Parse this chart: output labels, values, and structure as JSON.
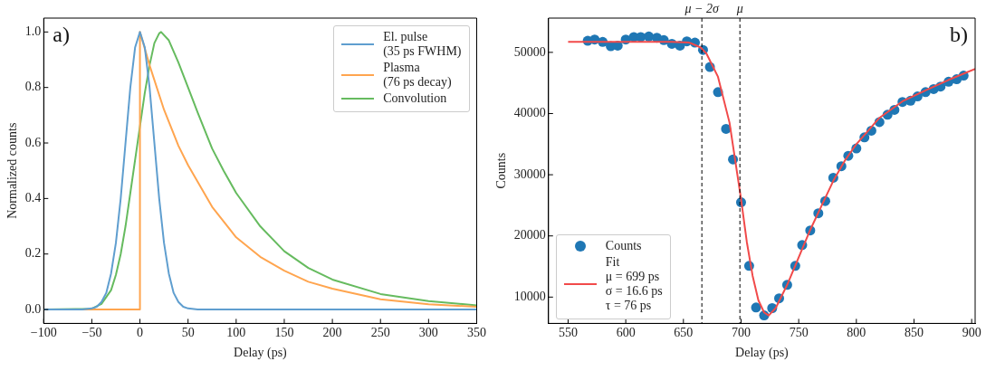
{
  "chart_data": [
    {
      "type": "line",
      "xlabel": "Delay (ps)",
      "ylabel": "Normalized counts",
      "xlim": [
        -100,
        350
      ],
      "xticks": [
        {
          "value": -100,
          "label": "−100"
        },
        {
          "value": -50,
          "label": "−50"
        },
        0,
        50,
        100,
        150,
        200,
        250,
        300,
        350
      ],
      "ylim": [
        -0.05,
        1.05
      ],
      "yticks": [
        {
          "value": 0,
          "label": "0.0"
        },
        {
          "value": 0.2,
          "label": "0.2"
        },
        {
          "value": 0.4,
          "label": "0.4"
        },
        {
          "value": 0.6,
          "label": "0.6"
        },
        {
          "value": 0.8,
          "label": "0.8"
        },
        {
          "value": 1,
          "label": "1.0"
        }
      ],
      "grid": false,
      "legend": "top right",
      "annotations": [
        "a)"
      ],
      "series": [
        {
          "name": "El. pulse\n(35 ps FWHM)",
          "color": "#5f9ecf",
          "x": [
            -100,
            -60,
            -50,
            -45,
            -40,
            -35,
            -30,
            -25,
            -20,
            -15,
            -10,
            -5,
            0,
            5,
            10,
            15,
            20,
            25,
            30,
            35,
            40,
            45,
            50,
            60,
            350
          ],
          "values": [
            0,
            0,
            0.004,
            0.01,
            0.027,
            0.06,
            0.13,
            0.24,
            0.4,
            0.6,
            0.8,
            0.945,
            1,
            0.945,
            0.8,
            0.6,
            0.4,
            0.24,
            0.13,
            0.06,
            0.027,
            0.01,
            0.004,
            0,
            0
          ]
        },
        {
          "name": "Plasma\n(76 ps decay)",
          "color": "#ffa54f",
          "x": [
            -100,
            0,
            0,
            10,
            25,
            40,
            50,
            75,
            100,
            125,
            150,
            175,
            200,
            250,
            300,
            350
          ],
          "values": [
            0,
            0,
            1,
            0.88,
            0.72,
            0.59,
            0.52,
            0.37,
            0.26,
            0.19,
            0.14,
            0.1,
            0.075,
            0.037,
            0.019,
            0.01
          ]
        },
        {
          "name": "Convolution",
          "color": "#66bb5f",
          "x": [
            -100,
            -50,
            -40,
            -30,
            -25,
            -20,
            -15,
            -10,
            -5,
            0,
            5,
            10,
            15,
            20,
            22,
            30,
            40,
            50,
            60,
            75,
            87,
            100,
            125,
            150,
            175,
            200,
            250,
            300,
            350
          ],
          "values": [
            0,
            0.003,
            0.02,
            0.07,
            0.125,
            0.2,
            0.3,
            0.42,
            0.54,
            0.66,
            0.78,
            0.88,
            0.96,
            0.995,
            1,
            0.97,
            0.89,
            0.8,
            0.71,
            0.58,
            0.5,
            0.42,
            0.3,
            0.21,
            0.15,
            0.108,
            0.056,
            0.03,
            0.015
          ]
        }
      ]
    },
    {
      "type": "scatter",
      "xlabel": "Delay (ps)",
      "ylabel": "Counts",
      "xlim": [
        533,
        903
      ],
      "xticks": [
        550,
        600,
        650,
        700,
        750,
        800,
        850,
        900
      ],
      "ylim": [
        5700,
        55600
      ],
      "yticks": [
        10000,
        20000,
        30000,
        40000,
        50000
      ],
      "grid": false,
      "legend": "bottom left",
      "annotations": [
        "b)"
      ],
      "ref_lines": [
        {
          "axis": "x",
          "value": 666,
          "label": "μ − 2σ",
          "color": "#000000",
          "line_style": "dashed"
        },
        {
          "axis": "x",
          "value": 699,
          "label": "μ",
          "color": "#000000",
          "line_style": "dashed"
        }
      ],
      "series": [
        {
          "name": "Counts",
          "marker": "circle",
          "color": "#1f77b4",
          "x": [
            567,
            573,
            580,
            587,
            593,
            600,
            607,
            613,
            620,
            627,
            633,
            640,
            647,
            653,
            660,
            667,
            673,
            680,
            687,
            693,
            700,
            707,
            713,
            720,
            727,
            733,
            740,
            747,
            753,
            760,
            767,
            773,
            780,
            787,
            793,
            800,
            807,
            813,
            820,
            827,
            833,
            840,
            847,
            853,
            860,
            867,
            873,
            880,
            887,
            893
          ],
          "values": [
            51900,
            52100,
            51700,
            51000,
            51100,
            52100,
            52500,
            52500,
            52600,
            52400,
            52000,
            51400,
            51100,
            51800,
            51600,
            50400,
            47600,
            43500,
            37500,
            32500,
            25500,
            15100,
            8300,
            7000,
            8200,
            9800,
            12000,
            15100,
            18500,
            20900,
            23700,
            25700,
            29500,
            31400,
            33100,
            34300,
            36100,
            37200,
            38600,
            39800,
            40600,
            41900,
            42100,
            42800,
            43500,
            44000,
            44400,
            45200,
            45600,
            46200
          ]
        },
        {
          "name": "Fit\nμ = 699 ps\nσ = 16.6 ps\nτ = 76 ps",
          "type": "line",
          "marker": "none",
          "color": "#f14a4a",
          "x": [
            550,
            640,
            655,
            665,
            670,
            680,
            690,
            700,
            705,
            710,
            715,
            720,
            724,
            730,
            740,
            750,
            760,
            770,
            780,
            790,
            800,
            820,
            840,
            860,
            880,
            903
          ],
          "values": [
            51700,
            51700,
            51600,
            50800,
            49800,
            46000,
            38500,
            26000,
            19000,
            13500,
            9500,
            7500,
            7000,
            8200,
            12000,
            16500,
            21000,
            25000,
            29000,
            32300,
            35000,
            39300,
            42000,
            43800,
            45500,
            47300
          ]
        }
      ]
    }
  ]
}
